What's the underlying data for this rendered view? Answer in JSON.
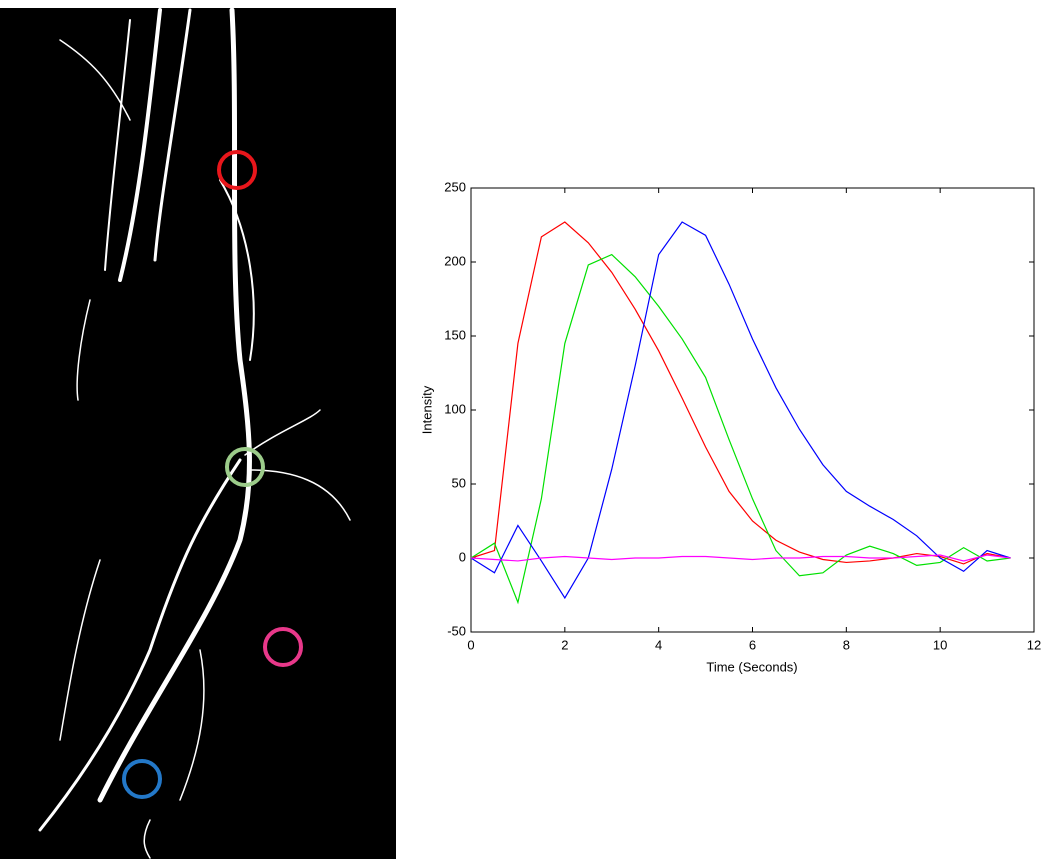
{
  "chart_data": {
    "type": "line",
    "x_label": "Time (Seconds)",
    "y_label": "Intensity",
    "x": [
      0,
      0.5,
      1,
      1.5,
      2,
      2.5,
      3,
      3.5,
      4,
      4.5,
      5,
      5.5,
      6,
      6.5,
      7,
      7.5,
      8,
      8.5,
      9,
      9.5,
      10,
      10.5,
      11,
      11.5
    ],
    "series": [
      {
        "color": "#ff0000",
        "values": [
          0,
          5,
          145,
          217,
          227,
          213,
          193,
          168,
          140,
          108,
          75,
          45,
          25,
          12,
          4,
          -1,
          -3,
          -2,
          0,
          3,
          1,
          -4,
          3,
          0
        ]
      },
      {
        "color": "#00e000",
        "values": [
          0,
          10,
          -30,
          40,
          145,
          198,
          205,
          190,
          170,
          148,
          122,
          80,
          40,
          5,
          -12,
          -10,
          2,
          8,
          3,
          -5,
          -3,
          7,
          -2,
          0
        ]
      },
      {
        "color": "#0000ff",
        "values": [
          0,
          -10,
          22,
          -2,
          -27,
          0,
          60,
          130,
          205,
          227,
          218,
          185,
          148,
          115,
          87,
          63,
          45,
          35,
          26,
          15,
          0,
          -9,
          5,
          0
        ]
      },
      {
        "color": "#ff00ff",
        "values": [
          0,
          -1,
          -2,
          0,
          1,
          0,
          -1,
          0,
          0,
          1,
          1,
          0,
          -1,
          0,
          0,
          1,
          1,
          0,
          0,
          1,
          2,
          -2,
          2,
          0
        ]
      }
    ],
    "xlim": [
      0,
      12
    ],
    "xticks": [
      0,
      2,
      4,
      6,
      8,
      10,
      12
    ],
    "ylim": [
      -50,
      250
    ],
    "yticks": [
      -50,
      0,
      50,
      100,
      150,
      200,
      250
    ],
    "grid": false
  }
}
